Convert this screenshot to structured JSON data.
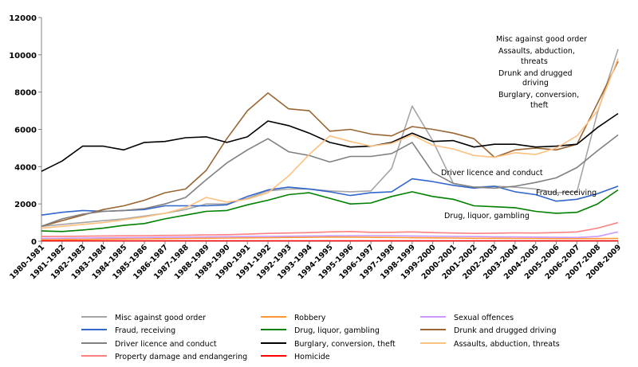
{
  "chart_data": {
    "type": "line",
    "title": "",
    "xlabel": "",
    "ylabel": "",
    "ylim": [
      0,
      12000
    ],
    "yticks": [
      0,
      2000,
      4000,
      6000,
      8000,
      10000,
      12000
    ],
    "ytick_labels": [
      "0",
      "2000",
      "4000",
      "6000",
      "8000",
      "10000",
      "12000"
    ],
    "grid": false,
    "legend_placement": "bottom",
    "categories": [
      "1980-1981",
      "1981-1982",
      "1982-1983",
      "1983-1984",
      "1984-1985",
      "1985-1986",
      "1986-1987",
      "1987-1988",
      "1988-1989",
      "1989-1990",
      "1990-1991",
      "1991-1992",
      "1992-1993",
      "1993-1994",
      "1994-1995",
      "1995-1996",
      "1996-1997",
      "1997-1998",
      "1998-1999",
      "1999-2000",
      "2000-2001",
      "2001-2002",
      "2002-2003",
      "2003-2004",
      "2004-2005",
      "2005-2006",
      "2006-2007",
      "2007-2008",
      "2008-2009"
    ],
    "series": [
      {
        "name": "Misc against good order",
        "color": "#a6a6a6",
        "values": [
          800,
          900,
          1000,
          1100,
          1200,
          1350,
          1500,
          1700,
          2000,
          2000,
          2300,
          2700,
          2800,
          2800,
          2700,
          2650,
          2700,
          3900,
          7250,
          5400,
          3100,
          2900,
          2950,
          2900,
          2800,
          2600,
          2650,
          6900,
          10300
        ]
      },
      {
        "name": "Robbery",
        "color": "#ff9933",
        "values": [
          80,
          90,
          100,
          110,
          120,
          130,
          140,
          150,
          160,
          170,
          180,
          190,
          200,
          210,
          220,
          220,
          210,
          200,
          190,
          180,
          170,
          160,
          160,
          150,
          150,
          140,
          140,
          140,
          150
        ]
      },
      {
        "name": "Sexual offences",
        "color": "#cc99ff",
        "values": [
          150,
          160,
          170,
          180,
          190,
          200,
          210,
          220,
          230,
          240,
          250,
          260,
          270,
          280,
          290,
          300,
          300,
          290,
          280,
          270,
          260,
          250,
          240,
          230,
          220,
          210,
          200,
          250,
          500
        ]
      },
      {
        "name": "Fraud, receiving",
        "color": "#3366cc",
        "values": [
          1400,
          1550,
          1650,
          1600,
          1650,
          1700,
          1900,
          1900,
          1900,
          1950,
          2400,
          2750,
          2900,
          2800,
          2650,
          2450,
          2600,
          2650,
          3350,
          3200,
          3000,
          2850,
          2950,
          2650,
          2500,
          2150,
          2250,
          2550,
          2950
        ]
      },
      {
        "name": "Drug, liquor, gambling",
        "color": "#008000",
        "values": [
          550,
          520,
          600,
          700,
          850,
          950,
          1200,
          1400,
          1600,
          1650,
          1950,
          2200,
          2500,
          2600,
          2300,
          2000,
          2050,
          2400,
          2650,
          2400,
          2250,
          1900,
          1850,
          1800,
          1600,
          1500,
          1550,
          2000,
          2750
        ]
      },
      {
        "name": "Drunk and drugged driving",
        "color": "#996633",
        "values": [
          800,
          1100,
          1400,
          1700,
          1900,
          2200,
          2600,
          2800,
          3800,
          5500,
          7000,
          7950,
          7100,
          7000,
          5900,
          6000,
          5750,
          5650,
          6150,
          6000,
          5800,
          5500,
          4500,
          4900,
          5000,
          4900,
          5200,
          7400,
          9650
        ]
      },
      {
        "name": "Driver licence and conduct",
        "color": "#808080",
        "values": [
          800,
          1200,
          1450,
          1600,
          1650,
          1750,
          2000,
          2350,
          3300,
          4200,
          4900,
          5500,
          4800,
          4600,
          4250,
          4550,
          4550,
          4700,
          5300,
          3700,
          3100,
          2900,
          2850,
          2950,
          3150,
          3400,
          3950,
          4850,
          5700
        ]
      },
      {
        "name": "Burglary, conversion, theft",
        "color": "#000000",
        "values": [
          3750,
          4300,
          5100,
          5100,
          4900,
          5300,
          5350,
          5550,
          5600,
          5300,
          5600,
          6450,
          6200,
          5800,
          5300,
          5050,
          5100,
          5300,
          5800,
          5350,
          5400,
          5050,
          5200,
          5200,
          5050,
          5100,
          5200,
          6100,
          6850
        ]
      },
      {
        "name": "Assaults, abduction, threats",
        "color": "#ffc080",
        "values": [
          700,
          800,
          900,
          1000,
          1150,
          1300,
          1500,
          1800,
          2350,
          2100,
          2250,
          2600,
          3500,
          4650,
          5650,
          5350,
          5100,
          5250,
          5700,
          5150,
          4950,
          4600,
          4500,
          4750,
          4650,
          5000,
          5650,
          7000,
          9800
        ]
      },
      {
        "name": "Property damage and endangering",
        "color": "#ff8080",
        "values": [
          250,
          260,
          270,
          280,
          290,
          300,
          310,
          320,
          340,
          350,
          380,
          420,
          440,
          460,
          500,
          520,
          480,
          480,
          500,
          460,
          440,
          420,
          430,
          450,
          440,
          460,
          500,
          700,
          1000
        ]
      },
      {
        "name": "Homicide",
        "color": "#ff0000",
        "values": [
          20,
          20,
          20,
          20,
          20,
          20,
          20,
          20,
          20,
          20,
          20,
          20,
          20,
          20,
          20,
          20,
          20,
          20,
          20,
          20,
          20,
          20,
          20,
          20,
          20,
          20,
          20,
          20,
          20
        ]
      }
    ],
    "inline_labels": [
      {
        "text": "Misc against good order"
      },
      {
        "text": "Assaults, abduction,"
      },
      {
        "text": "threats"
      },
      {
        "text": "Drunk and drugged"
      },
      {
        "text": "driving"
      },
      {
        "text": "Burglary, conversion,"
      },
      {
        "text": "theft"
      },
      {
        "text": "Driver licence and conduct"
      },
      {
        "text": "Fraud, receiving"
      },
      {
        "text": "Drug, liquor, gambling"
      }
    ],
    "legend": [
      {
        "label": "Misc against good order",
        "color": "#a6a6a6"
      },
      {
        "label": "Robbery",
        "color": "#ff9933"
      },
      {
        "label": "Sexual offences",
        "color": "#cc99ff"
      },
      {
        "label": "Fraud, receiving",
        "color": "#3366cc"
      },
      {
        "label": "Drug, liquor, gambling",
        "color": "#008000"
      },
      {
        "label": "Drunk and drugged driving",
        "color": "#996633"
      },
      {
        "label": "Driver licence and conduct",
        "color": "#808080"
      },
      {
        "label": "Burglary, conversion, theft",
        "color": "#000000"
      },
      {
        "label": "Assaults, abduction, threats",
        "color": "#ffc080"
      },
      {
        "label": "Property damage and endangering",
        "color": "#ff8080"
      },
      {
        "label": "Homicide",
        "color": "#ff0000"
      }
    ]
  }
}
